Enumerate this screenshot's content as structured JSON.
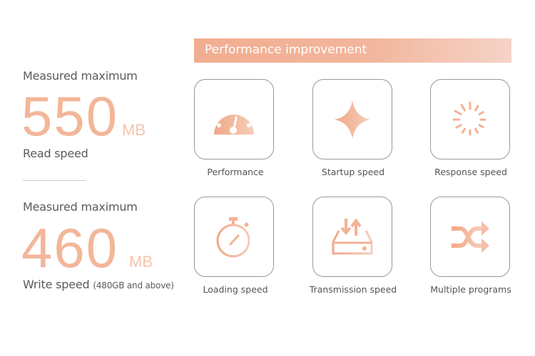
{
  "left": {
    "read": {
      "heading": "Measured maximum",
      "value": "550",
      "unit": "MB",
      "label": "Read speed"
    },
    "write": {
      "heading": "Measured maximum",
      "value": "460",
      "unit": "MB",
      "label": "Write speed",
      "note": "(480GB and above)"
    }
  },
  "header": {
    "title": "Performance improvement"
  },
  "features": [
    {
      "label": "Performance",
      "icon": "speedometer-icon"
    },
    {
      "label": "Startup speed",
      "icon": "sparkle-icon"
    },
    {
      "label": "Response speed",
      "icon": "loading-spinner-icon"
    },
    {
      "label": "Loading speed",
      "icon": "stopwatch-icon"
    },
    {
      "label": "Transmission speed",
      "icon": "drive-transfer-icon"
    },
    {
      "label": "Multiple programs",
      "icon": "shuffle-icon"
    }
  ],
  "colors": {
    "accent": "#f2b294",
    "border": "#999999",
    "text": "#555555"
  }
}
